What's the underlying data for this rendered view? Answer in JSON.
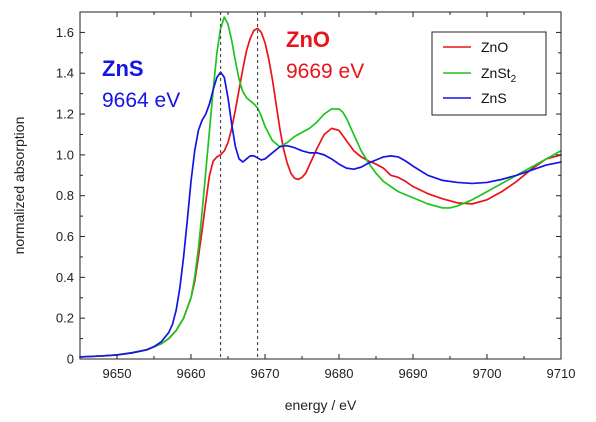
{
  "chart_data": {
    "type": "line",
    "xlabel": "energy / eV",
    "ylabel": "normalized absorption",
    "xlim": [
      9645,
      9710
    ],
    "ylim": [
      0,
      1.7
    ],
    "xticks": [
      9650,
      9660,
      9670,
      9680,
      9690,
      9700,
      9710
    ],
    "yticks": [
      0,
      0.2,
      0.4,
      0.6,
      0.8,
      1.0,
      1.2,
      1.4,
      1.6
    ],
    "xtick_labels": [
      "9650",
      "9660",
      "9670",
      "9680",
      "9690",
      "9700",
      "9710"
    ],
    "ytick_labels": [
      "0",
      "0.2",
      "0.4",
      "0.6",
      "0.8",
      "1.0",
      "1.2",
      "1.4",
      "1.6"
    ],
    "grid": false,
    "legend": {
      "placement": "top-right",
      "entries": [
        {
          "label": "ZnO",
          "color": "#e8141b"
        },
        {
          "label": "ZnSt",
          "subscript": "2",
          "color": "#1ec41e"
        },
        {
          "label": "ZnS",
          "color": "#1414e6"
        }
      ]
    },
    "reference_lines": [
      9664,
      9669
    ],
    "annotations": [
      {
        "name": "ZnS",
        "value": "9664 eV",
        "color": "#1414e6"
      },
      {
        "name": "ZnO",
        "value": "9669 eV",
        "color": "#e8141b"
      }
    ],
    "series": [
      {
        "name": "ZnO",
        "color": "#e8141b",
        "points": [
          [
            9645,
            0.01
          ],
          [
            9648,
            0.015
          ],
          [
            9650,
            0.02
          ],
          [
            9652,
            0.03
          ],
          [
            9654,
            0.045
          ],
          [
            9656,
            0.075
          ],
          [
            9657,
            0.1
          ],
          [
            9658,
            0.14
          ],
          [
            9659,
            0.2
          ],
          [
            9660,
            0.3
          ],
          [
            9660.5,
            0.38
          ],
          [
            9661,
            0.5
          ],
          [
            9661.5,
            0.63
          ],
          [
            9662,
            0.77
          ],
          [
            9662.5,
            0.9
          ],
          [
            9663,
            0.97
          ],
          [
            9663.5,
            0.99
          ],
          [
            9664,
            1.0
          ],
          [
            9664.5,
            1.02
          ],
          [
            9665,
            1.06
          ],
          [
            9665.5,
            1.13
          ],
          [
            9666,
            1.22
          ],
          [
            9666.5,
            1.32
          ],
          [
            9667,
            1.42
          ],
          [
            9667.5,
            1.51
          ],
          [
            9668,
            1.57
          ],
          [
            9668.5,
            1.61
          ],
          [
            9669,
            1.62
          ],
          [
            9669.5,
            1.6
          ],
          [
            9670,
            1.55
          ],
          [
            9670.5,
            1.47
          ],
          [
            9671,
            1.37
          ],
          [
            9671.5,
            1.25
          ],
          [
            9672,
            1.13
          ],
          [
            9672.5,
            1.03
          ],
          [
            9673,
            0.96
          ],
          [
            9673.5,
            0.91
          ],
          [
            9674,
            0.885
          ],
          [
            9674.5,
            0.88
          ],
          [
            9675,
            0.89
          ],
          [
            9675.5,
            0.91
          ],
          [
            9676,
            0.95
          ],
          [
            9677,
            1.03
          ],
          [
            9678,
            1.1
          ],
          [
            9679,
            1.13
          ],
          [
            9680,
            1.12
          ],
          [
            9681,
            1.07
          ],
          [
            9682,
            1.02
          ],
          [
            9683,
            0.99
          ],
          [
            9684,
            0.97
          ],
          [
            9685,
            0.955
          ],
          [
            9686,
            0.935
          ],
          [
            9687,
            0.9
          ],
          [
            9688,
            0.89
          ],
          [
            9689,
            0.87
          ],
          [
            9690,
            0.845
          ],
          [
            9692,
            0.81
          ],
          [
            9694,
            0.785
          ],
          [
            9696,
            0.765
          ],
          [
            9698,
            0.76
          ],
          [
            9700,
            0.78
          ],
          [
            9702,
            0.82
          ],
          [
            9704,
            0.87
          ],
          [
            9706,
            0.93
          ],
          [
            9708,
            0.98
          ],
          [
            9710,
            1.0
          ]
        ]
      },
      {
        "name": "ZnSt2",
        "color": "#1ec41e",
        "points": [
          [
            9645,
            0.01
          ],
          [
            9648,
            0.015
          ],
          [
            9650,
            0.02
          ],
          [
            9652,
            0.03
          ],
          [
            9654,
            0.045
          ],
          [
            9656,
            0.075
          ],
          [
            9657,
            0.1
          ],
          [
            9658,
            0.14
          ],
          [
            9659,
            0.2
          ],
          [
            9660,
            0.3
          ],
          [
            9660.5,
            0.4
          ],
          [
            9661,
            0.54
          ],
          [
            9661.5,
            0.72
          ],
          [
            9662,
            0.92
          ],
          [
            9662.5,
            1.12
          ],
          [
            9663,
            1.32
          ],
          [
            9663.5,
            1.5
          ],
          [
            9664,
            1.62
          ],
          [
            9664.5,
            1.675
          ],
          [
            9665,
            1.64
          ],
          [
            9665.5,
            1.56
          ],
          [
            9666,
            1.46
          ],
          [
            9666.5,
            1.37
          ],
          [
            9667,
            1.31
          ],
          [
            9667.5,
            1.28
          ],
          [
            9668,
            1.265
          ],
          [
            9668.5,
            1.25
          ],
          [
            9669,
            1.23
          ],
          [
            9669.5,
            1.19
          ],
          [
            9670,
            1.14
          ],
          [
            9671,
            1.07
          ],
          [
            9672,
            1.04
          ],
          [
            9673,
            1.06
          ],
          [
            9674,
            1.09
          ],
          [
            9675,
            1.11
          ],
          [
            9676,
            1.13
          ],
          [
            9677,
            1.16
          ],
          [
            9678,
            1.2
          ],
          [
            9679,
            1.225
          ],
          [
            9680,
            1.225
          ],
          [
            9680.5,
            1.21
          ],
          [
            9681,
            1.18
          ],
          [
            9682,
            1.1
          ],
          [
            9683,
            1.02
          ],
          [
            9684,
            0.96
          ],
          [
            9685,
            0.91
          ],
          [
            9686,
            0.87
          ],
          [
            9688,
            0.82
          ],
          [
            9690,
            0.79
          ],
          [
            9692,
            0.76
          ],
          [
            9694,
            0.74
          ],
          [
            9695,
            0.74
          ],
          [
            9696,
            0.75
          ],
          [
            9698,
            0.78
          ],
          [
            9700,
            0.82
          ],
          [
            9702,
            0.86
          ],
          [
            9704,
            0.9
          ],
          [
            9706,
            0.94
          ],
          [
            9708,
            0.98
          ],
          [
            9710,
            1.02
          ]
        ]
      },
      {
        "name": "ZnS",
        "color": "#1414e6",
        "points": [
          [
            9645,
            0.01
          ],
          [
            9648,
            0.015
          ],
          [
            9650,
            0.02
          ],
          [
            9652,
            0.03
          ],
          [
            9654,
            0.045
          ],
          [
            9655,
            0.06
          ],
          [
            9656,
            0.085
          ],
          [
            9657,
            0.13
          ],
          [
            9657.5,
            0.17
          ],
          [
            9658,
            0.24
          ],
          [
            9658.5,
            0.35
          ],
          [
            9659,
            0.5
          ],
          [
            9659.5,
            0.68
          ],
          [
            9660,
            0.87
          ],
          [
            9660.5,
            1.02
          ],
          [
            9661,
            1.12
          ],
          [
            9661.5,
            1.17
          ],
          [
            9662,
            1.2
          ],
          [
            9662.5,
            1.25
          ],
          [
            9663,
            1.32
          ],
          [
            9663.5,
            1.38
          ],
          [
            9664,
            1.405
          ],
          [
            9664.5,
            1.38
          ],
          [
            9665,
            1.28
          ],
          [
            9665.5,
            1.15
          ],
          [
            9666,
            1.04
          ],
          [
            9666.5,
            0.98
          ],
          [
            9667,
            0.965
          ],
          [
            9667.5,
            0.98
          ],
          [
            9668,
            0.995
          ],
          [
            9668.5,
            0.995
          ],
          [
            9669,
            0.985
          ],
          [
            9669.5,
            0.975
          ],
          [
            9670,
            0.98
          ],
          [
            9671,
            1.01
          ],
          [
            9672,
            1.04
          ],
          [
            9673,
            1.045
          ],
          [
            9674,
            1.035
          ],
          [
            9675,
            1.02
          ],
          [
            9676,
            1.01
          ],
          [
            9677,
            1.01
          ],
          [
            9678,
            1.0
          ],
          [
            9679,
            0.98
          ],
          [
            9680,
            0.955
          ],
          [
            9681,
            0.935
          ],
          [
            9682,
            0.93
          ],
          [
            9683,
            0.94
          ],
          [
            9684,
            0.96
          ],
          [
            9685,
            0.975
          ],
          [
            9686,
            0.99
          ],
          [
            9687,
            0.995
          ],
          [
            9688,
            0.99
          ],
          [
            9689,
            0.97
          ],
          [
            9690,
            0.945
          ],
          [
            9692,
            0.9
          ],
          [
            9694,
            0.875
          ],
          [
            9696,
            0.865
          ],
          [
            9698,
            0.86
          ],
          [
            9700,
            0.865
          ],
          [
            9702,
            0.88
          ],
          [
            9704,
            0.9
          ],
          [
            9706,
            0.925
          ],
          [
            9708,
            0.95
          ],
          [
            9710,
            0.965
          ]
        ]
      }
    ]
  }
}
